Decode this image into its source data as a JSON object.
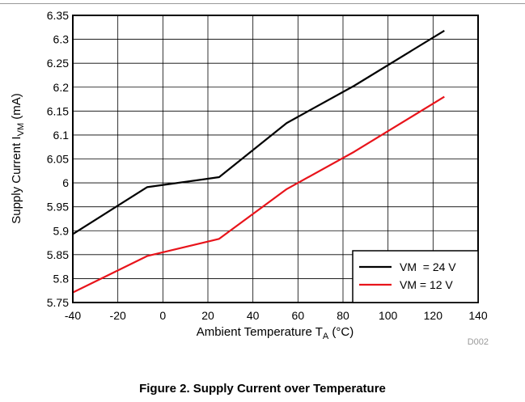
{
  "chart_data": {
    "type": "line",
    "xlabel_main": "Ambient Temperature T",
    "xlabel_sub": "A",
    "xlabel_tail": " (°C)",
    "ylabel_main": "Supply Current I",
    "ylabel_sub": "VM",
    "ylabel_tail": " (mA)",
    "xlim": [
      -40,
      140
    ],
    "ylim": [
      5.75,
      6.35
    ],
    "xticks": [
      -40,
      -20,
      0,
      20,
      40,
      60,
      80,
      100,
      120,
      140
    ],
    "yticks": [
      5.75,
      5.8,
      5.85,
      5.9,
      5.95,
      6.0,
      6.05,
      6.1,
      6.15,
      6.2,
      6.25,
      6.3,
      6.35
    ],
    "ytick_labels": [
      "5.75",
      "5.8",
      "5.85",
      "5.9",
      "5.95",
      "6",
      "6.05",
      "6.1",
      "6.15",
      "6.2",
      "6.25",
      "6.3",
      "6.35"
    ],
    "grid": true,
    "legend_position": "bottom-right",
    "series": [
      {
        "name": "VM  = 24 V",
        "color": "#000000",
        "x": [
          -40,
          -7,
          25,
          55,
          85,
          125
        ],
        "y": [
          5.893,
          5.991,
          6.012,
          6.125,
          6.203,
          6.318
        ]
      },
      {
        "name": "VM = 12 V",
        "color": "#e8141b",
        "x": [
          -40,
          -7,
          25,
          55,
          85,
          125
        ],
        "y": [
          5.771,
          5.847,
          5.883,
          5.987,
          6.065,
          6.18
        ]
      }
    ]
  },
  "figure_id": "D002",
  "caption": "Figure 2. Supply Current over Temperature"
}
